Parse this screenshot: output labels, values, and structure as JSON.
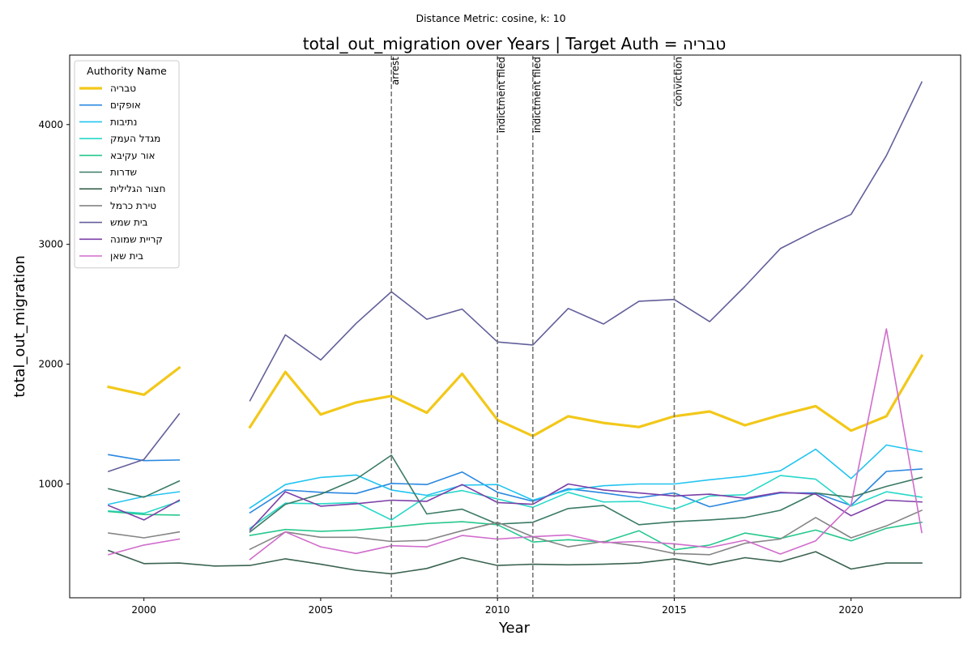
{
  "suptitle": "Distance Metric: cosine, k: 10",
  "chart_data": {
    "type": "line",
    "title": "total_out_migration over Years | Target Auth = טבריה",
    "xlabel": "Year",
    "ylabel": "total_out_migration",
    "xlim": [
      1997.9,
      2023.1
    ],
    "ylim": [
      50,
      4580
    ],
    "x_ticks": [
      2000,
      2005,
      2010,
      2015,
      2020
    ],
    "y_ticks": [
      1000,
      2000,
      3000,
      4000
    ],
    "x": [
      1999,
      2000,
      2001,
      2002,
      2003,
      2004,
      2005,
      2006,
      2007,
      2008,
      2009,
      2010,
      2011,
      2012,
      2013,
      2014,
      2015,
      2016,
      2017,
      2018,
      2019,
      2020,
      2021,
      2022
    ],
    "legend": {
      "title": "Authority Name",
      "position": "upper left"
    },
    "events": [
      {
        "x": 2007,
        "label": "arrest"
      },
      {
        "x": 2010,
        "label": "indictment filed"
      },
      {
        "x": 2011,
        "label": "indictment filed"
      },
      {
        "x": 2015,
        "label": "conviction"
      }
    ],
    "series": [
      {
        "name": "טבריה",
        "color": "#f2c81a",
        "width": 3.2,
        "values": [
          1810,
          1745,
          1970,
          null,
          1475,
          1935,
          1580,
          1680,
          1735,
          1595,
          1920,
          1535,
          1400,
          1565,
          1510,
          1475,
          1565,
          1605,
          1490,
          1575,
          1650,
          1445,
          1565,
          2070
        ]
      },
      {
        "name": "אופקים",
        "color": "#2a88e0",
        "width": 1.6,
        "values": [
          1245,
          1195,
          1200,
          null,
          760,
          950,
          930,
          920,
          1005,
          995,
          1100,
          930,
          855,
          960,
          925,
          885,
          925,
          810,
          870,
          925,
          925,
          820,
          1105,
          1125
        ]
      },
      {
        "name": "נתיבות",
        "color": "#22c4f0",
        "width": 1.6,
        "values": [
          830,
          895,
          935,
          null,
          800,
          995,
          1055,
          1075,
          950,
          905,
          990,
          995,
          865,
          950,
          985,
          1000,
          1000,
          1035,
          1065,
          1110,
          1290,
          1045,
          1325,
          1270
        ]
      },
      {
        "name": "מגדל העמק",
        "color": "#28d8c8",
        "width": 1.6,
        "values": [
          775,
          755,
          855,
          null,
          630,
          840,
          835,
          845,
          700,
          895,
          945,
          875,
          805,
          930,
          850,
          855,
          790,
          900,
          910,
          1070,
          1040,
          815,
          935,
          890
        ]
      },
      {
        "name": "אור עקיבא",
        "color": "#28c88e",
        "width": 1.6,
        "values": [
          770,
          745,
          740,
          null,
          570,
          620,
          605,
          615,
          640,
          670,
          685,
          660,
          515,
          535,
          515,
          610,
          450,
          490,
          590,
          545,
          615,
          525,
          630,
          680
        ]
      },
      {
        "name": "שדרות",
        "color": "#3a7a66",
        "width": 1.6,
        "values": [
          960,
          890,
          1025,
          null,
          600,
          830,
          915,
          1040,
          1240,
          750,
          790,
          665,
          680,
          795,
          820,
          660,
          685,
          700,
          720,
          780,
          925,
          890,
          980,
          1055
        ]
      },
      {
        "name": "חצור הגלילית",
        "color": "#3a6350",
        "width": 1.6,
        "values": [
          445,
          335,
          340,
          315,
          320,
          375,
          330,
          280,
          250,
          295,
          385,
          320,
          330,
          325,
          330,
          340,
          375,
          325,
          385,
          350,
          435,
          290,
          340,
          340
        ]
      },
      {
        "name": "טירת כרמל",
        "color": "#858585",
        "width": 1.6,
        "values": [
          590,
          550,
          600,
          null,
          455,
          600,
          555,
          555,
          520,
          530,
          610,
          680,
          560,
          475,
          520,
          480,
          420,
          410,
          505,
          540,
          720,
          550,
          650,
          780
        ]
      },
      {
        "name": "בית שמש",
        "color": "#625f9a",
        "width": 1.6,
        "values": [
          1105,
          1205,
          1585,
          null,
          1695,
          2245,
          2035,
          2340,
          2605,
          2375,
          2460,
          2185,
          2160,
          2465,
          2335,
          2525,
          2540,
          2355,
          2650,
          2965,
          3115,
          3250,
          3740,
          4355
        ]
      },
      {
        "name": "קריית שמונה",
        "color": "#7c3fa8",
        "width": 1.6,
        "values": [
          820,
          700,
          865,
          null,
          615,
          935,
          815,
          835,
          865,
          855,
          995,
          845,
          830,
          1000,
          950,
          925,
          900,
          915,
          880,
          930,
          915,
          735,
          865,
          850
        ]
      },
      {
        "name": "בית שאן",
        "color": "#d06ccc",
        "width": 1.6,
        "values": [
          410,
          490,
          540,
          null,
          370,
          600,
          475,
          420,
          485,
          475,
          570,
          540,
          560,
          575,
          510,
          520,
          500,
          470,
          530,
          415,
          525,
          825,
          2295,
          595
        ]
      }
    ]
  }
}
